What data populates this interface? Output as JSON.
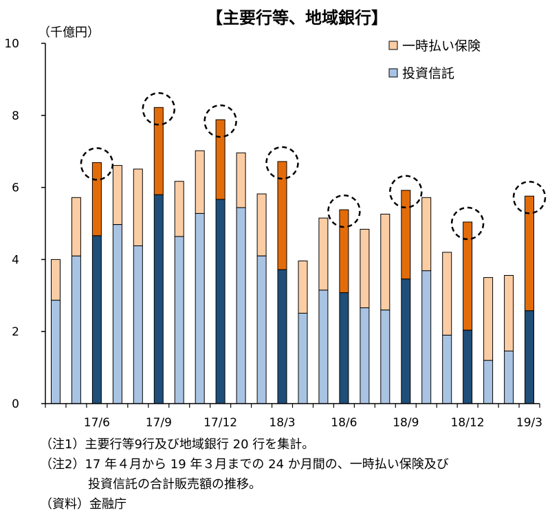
{
  "chart_data": {
    "type": "bar",
    "stacked": true,
    "title": "【主要行等、地域銀行】",
    "ylabel": "（千億円）",
    "ylim": [
      0,
      10
    ],
    "yticks": [
      0,
      2,
      4,
      6,
      8,
      10
    ],
    "x_tick_labels": [
      {
        "index": 2,
        "label": "17/6"
      },
      {
        "index": 5,
        "label": "17/9"
      },
      {
        "index": 8,
        "label": "17/12"
      },
      {
        "index": 11,
        "label": "18/3"
      },
      {
        "index": 14,
        "label": "18/6"
      },
      {
        "index": 17,
        "label": "18/9"
      },
      {
        "index": 20,
        "label": "18/12"
      },
      {
        "index": 23,
        "label": "19/3"
      }
    ],
    "highlighted_indices": [
      2,
      5,
      8,
      11,
      14,
      17,
      20,
      23
    ],
    "series": [
      {
        "name": "投資信託",
        "color": "#a9c3e3",
        "highlight_color": "#1f4e79",
        "values": [
          2.87,
          4.1,
          4.66,
          4.97,
          4.38,
          5.8,
          4.64,
          5.28,
          5.67,
          5.44,
          4.1,
          3.72,
          2.51,
          3.15,
          3.08,
          2.66,
          2.6,
          3.46,
          3.69,
          1.9,
          2.04,
          1.2,
          1.46,
          2.58
        ]
      },
      {
        "name": "一時払い保険",
        "color": "#fbcda5",
        "highlight_color": "#e36c0a",
        "values": [
          1.13,
          1.62,
          2.03,
          1.64,
          2.13,
          2.42,
          1.53,
          1.74,
          2.21,
          1.52,
          1.72,
          3.0,
          1.45,
          2.0,
          2.3,
          2.18,
          2.66,
          2.46,
          2.03,
          2.3,
          3.0,
          2.3,
          2.1,
          3.18
        ]
      }
    ],
    "legend_position": "top-right"
  },
  "notes": [
    "（注1）主要行等9行及び地域銀行 20 行を集計。",
    "（注2）17 年４月から 19 年３月までの 24 か月間の、一時払い保険及び",
    "投資信託の合計販売額の推移。",
    "（資料）金融庁"
  ]
}
